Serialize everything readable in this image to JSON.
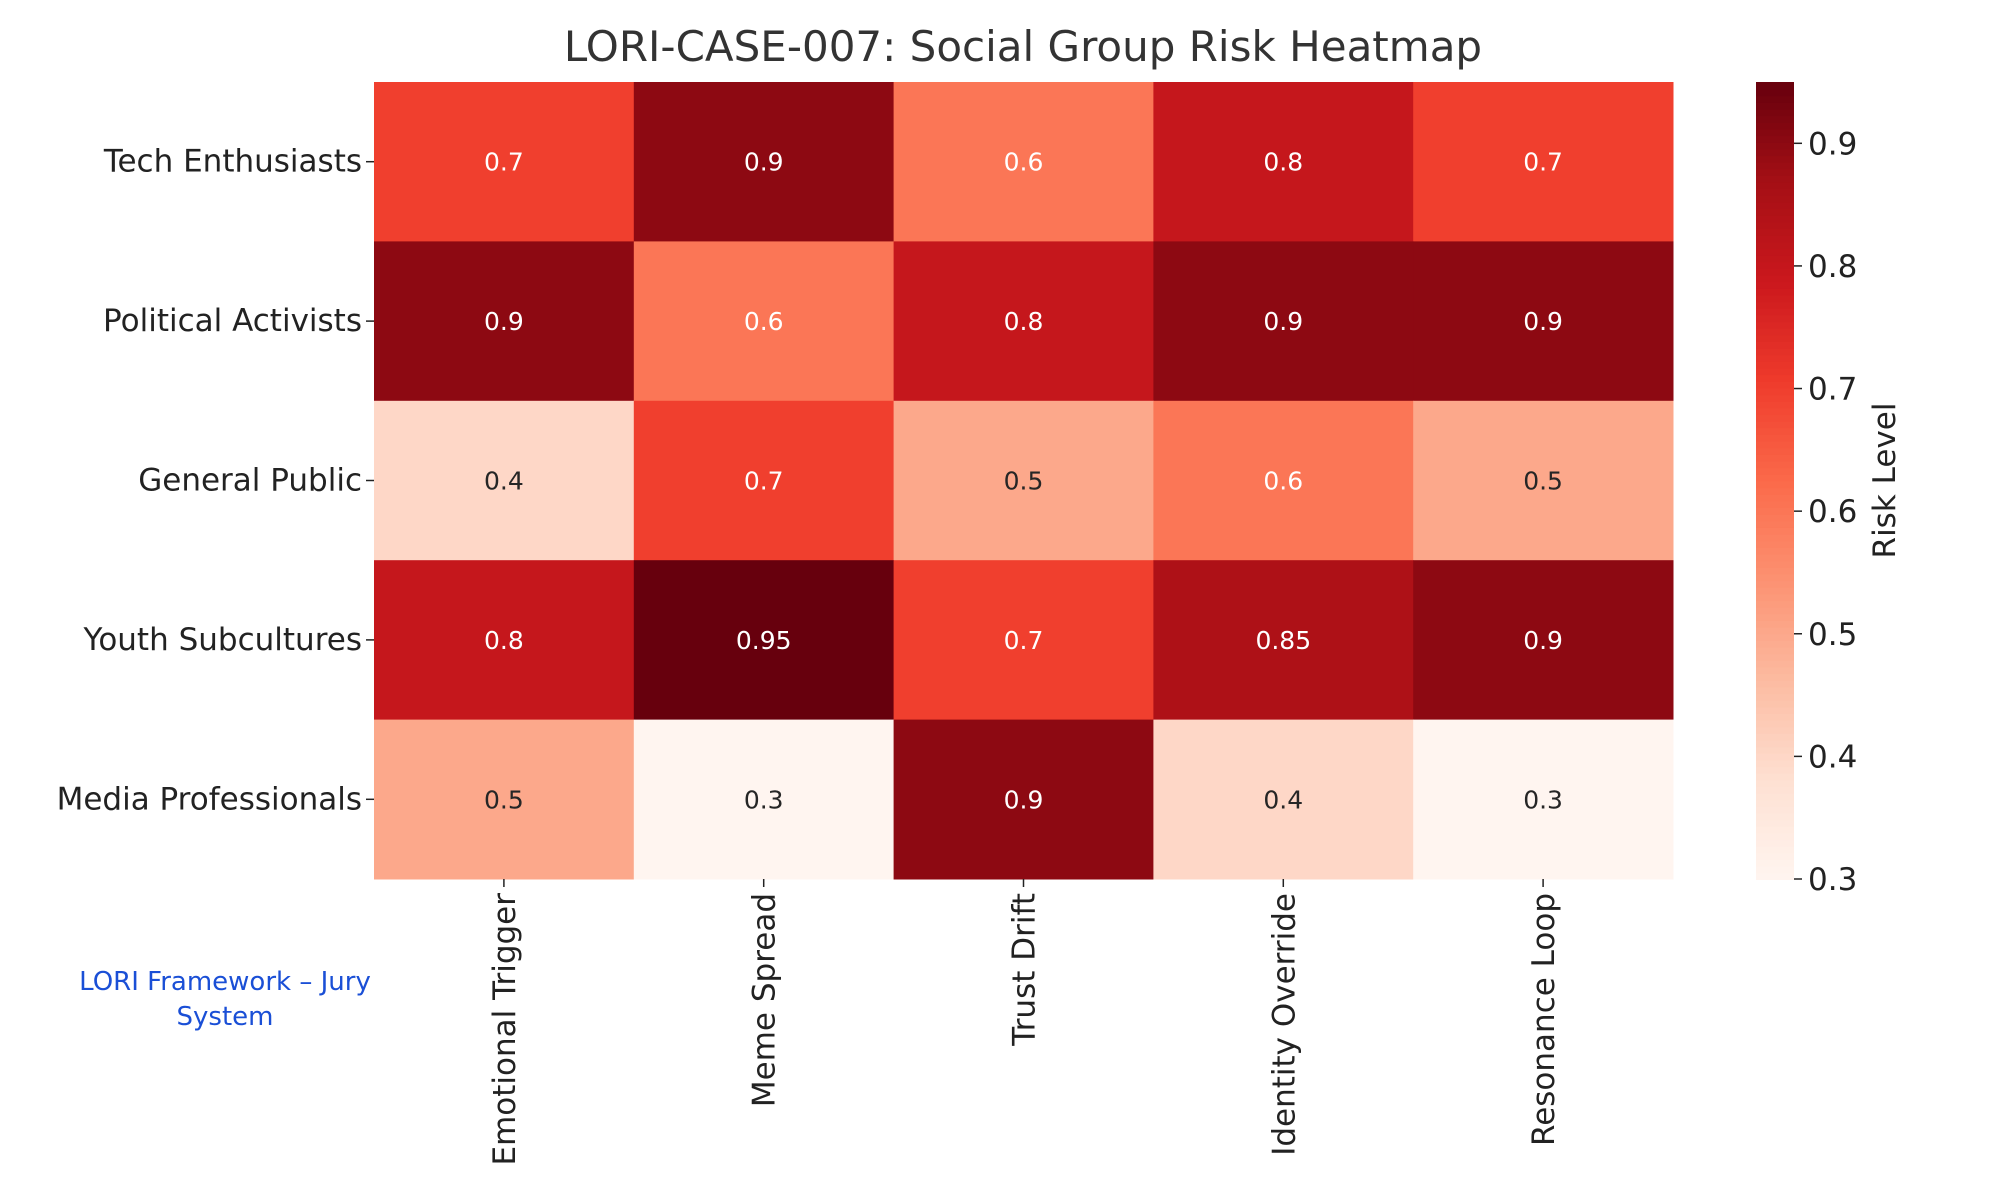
{
  "chart_data": {
    "type": "heatmap",
    "title": "LORI-CASE-007: Social Group Risk Heatmap",
    "rows": [
      "Tech Enthusiasts",
      "Political Activists",
      "General Public",
      "Youth Subcultures",
      "Media Professionals"
    ],
    "columns": [
      "Emotional Trigger",
      "Meme Spread",
      "Trust Drift",
      "Identity Override",
      "Resonance Loop"
    ],
    "values": [
      [
        0.7,
        0.9,
        0.6,
        0.8,
        0.7
      ],
      [
        0.9,
        0.6,
        0.8,
        0.9,
        0.9
      ],
      [
        0.4,
        0.7,
        0.5,
        0.6,
        0.5
      ],
      [
        0.8,
        0.95,
        0.7,
        0.85,
        0.9
      ],
      [
        0.5,
        0.3,
        0.9,
        0.4,
        0.3
      ]
    ],
    "colormap": "Reds",
    "colorbar": {
      "label": "Risk Level",
      "range": [
        0.3,
        0.95
      ],
      "ticks": [
        "0.3",
        "0.4",
        "0.5",
        "0.6",
        "0.7",
        "0.8",
        "0.9"
      ]
    },
    "annotated": true
  },
  "footer": "LORI Framework – Jury System"
}
